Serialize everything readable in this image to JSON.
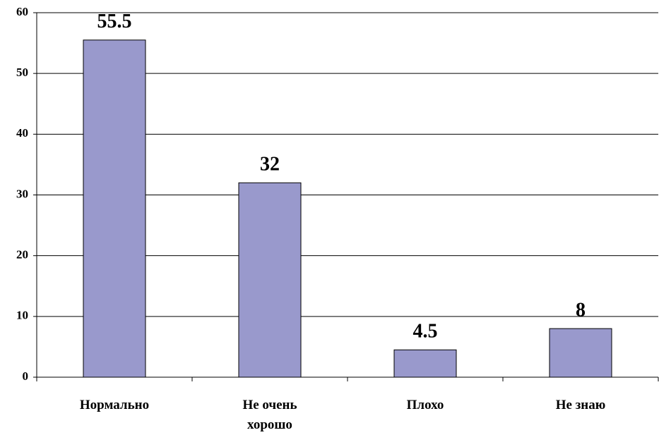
{
  "chart_data": {
    "type": "bar",
    "categories": [
      "Нормально",
      "Не очень хорошо",
      "Плохо",
      "Не знаю"
    ],
    "values": [
      55.5,
      32,
      4.5,
      8
    ],
    "color": "#9999cc",
    "ylim": [
      0,
      60
    ],
    "yticks": [
      0,
      10,
      20,
      30,
      40,
      50,
      60
    ],
    "grid": true
  }
}
